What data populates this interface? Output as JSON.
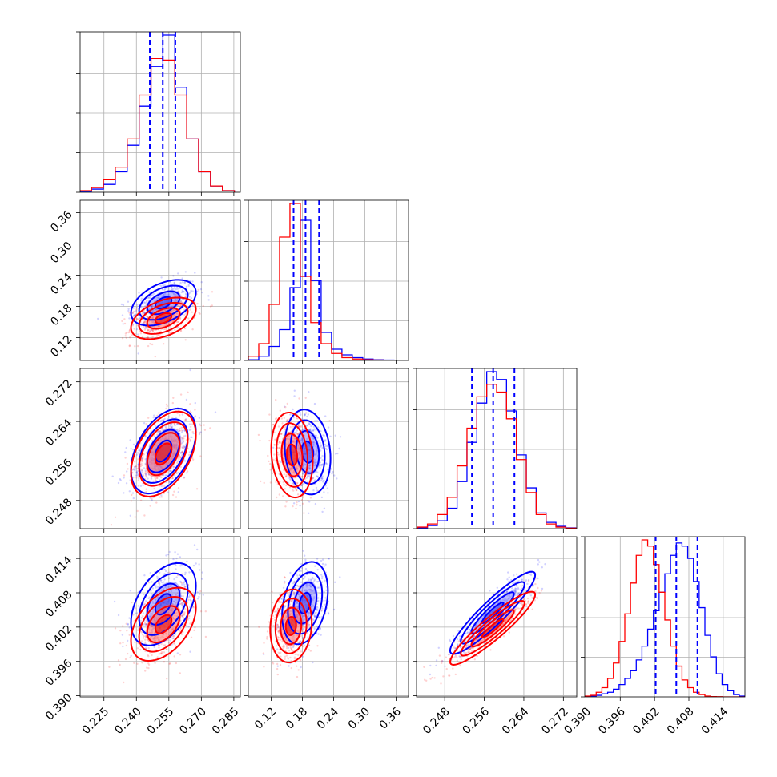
{
  "chart_data": {
    "type": "corner",
    "params": 4,
    "series": [
      {
        "color": "#0000ff"
      },
      {
        "color": "#ff0000"
      }
    ],
    "marginals": [
      {
        "range": [
          0.214,
          0.288
        ],
        "ticks": [
          0.225,
          0.24,
          0.255,
          0.27,
          0.285
        ],
        "tick_labels": [
          "0.225",
          "0.240",
          "0.255",
          "0.270",
          "0.285"
        ],
        "quantiles": [
          0.2462,
          0.2522,
          0.258
        ],
        "blue": {
          "x": [
            0.2165,
            0.222,
            0.2275,
            0.233,
            0.2385,
            0.244,
            0.2495,
            0.255,
            0.2605,
            0.266,
            0.2715,
            0.277,
            0.2825
          ],
          "y": [
            0.5,
            2,
            5,
            13,
            30,
            55,
            80,
            100,
            67,
            34,
            13,
            4,
            1
          ]
        },
        "red": {
          "x": [
            0.2165,
            0.222,
            0.2275,
            0.233,
            0.2385,
            0.244,
            0.2495,
            0.255,
            0.2605,
            0.266,
            0.2715,
            0.277,
            0.2825
          ],
          "y": [
            1,
            3,
            8,
            16,
            34,
            62,
            85,
            84,
            62,
            34,
            13,
            4,
            1
          ]
        }
      },
      {
        "range": [
          0.076,
          0.384
        ],
        "ticks": [
          0.12,
          0.18,
          0.24,
          0.3,
          0.36
        ],
        "tick_labels": [
          "0.12",
          "0.18",
          "0.24",
          "0.30",
          "0.36"
        ],
        "quantiles": [
          0.163,
          0.186,
          0.212
        ],
        "blue": {
          "x": [
            0.086,
            0.106,
            0.126,
            0.146,
            0.166,
            0.186,
            0.206,
            0.226,
            0.246,
            0.266,
            0.286,
            0.306,
            0.326,
            0.346,
            0.366
          ],
          "y": [
            0.5,
            3,
            10,
            22,
            52,
            100,
            57,
            20,
            8,
            4,
            2,
            1,
            0.5,
            0.3,
            0.1
          ]
        },
        "red": {
          "x": [
            0.086,
            0.106,
            0.126,
            0.146,
            0.166,
            0.186,
            0.206,
            0.226,
            0.246,
            0.266,
            0.286,
            0.306,
            0.326,
            0.346,
            0.366
          ],
          "y": [
            3,
            12,
            40,
            88,
            112,
            60,
            27,
            12,
            5,
            2,
            1,
            0.5,
            0.3,
            0.1,
            0.1
          ]
        }
      },
      {
        "range": [
          0.2423,
          0.2747
        ],
        "ticks": [
          0.248,
          0.256,
          0.264,
          0.272
        ],
        "tick_labels": [
          "0.248",
          "0.256",
          "0.264",
          "0.272"
        ],
        "quantiles": [
          0.2535,
          0.2578,
          0.2621
        ],
        "blue": {
          "x": [
            0.2435,
            0.2455,
            0.2475,
            0.2495,
            0.2515,
            0.2535,
            0.2555,
            0.2575,
            0.2595,
            0.2615,
            0.2635,
            0.2655,
            0.2675,
            0.2695,
            0.2715,
            0.2735
          ],
          "y": [
            0.5,
            2,
            5,
            13,
            30,
            55,
            80,
            100,
            95,
            75,
            47,
            26,
            10,
            4,
            1.5,
            0.5
          ]
        },
        "red": {
          "x": [
            0.2435,
            0.2455,
            0.2475,
            0.2495,
            0.2515,
            0.2535,
            0.2555,
            0.2575,
            0.2595,
            0.2615,
            0.2635,
            0.2655,
            0.2675,
            0.2695,
            0.2715,
            0.2735
          ],
          "y": [
            1,
            3,
            9,
            20,
            40,
            64,
            84,
            92,
            87,
            70,
            44,
            23,
            9,
            3,
            1,
            0.3
          ]
        }
      },
      {
        "range": [
          0.3898,
          0.4178
        ],
        "ticks": [
          0.39,
          0.396,
          0.402,
          0.408,
          0.414
        ],
        "tick_labels": [
          "0.390",
          "0.396",
          "0.402",
          "0.408",
          "0.414"
        ],
        "quantiles": [
          0.4022,
          0.4058,
          0.4095
        ],
        "blue": {
          "x": [
            0.3903,
            0.3913,
            0.3923,
            0.3933,
            0.3943,
            0.3953,
            0.3963,
            0.3973,
            0.3983,
            0.3993,
            0.4003,
            0.4013,
            0.4023,
            0.4033,
            0.4043,
            0.4053,
            0.4063,
            0.4073,
            0.4083,
            0.4093,
            0.4103,
            0.4113,
            0.4123,
            0.4133,
            0.4143,
            0.4153,
            0.4163,
            0.4173
          ],
          "y": [
            0.2,
            0.5,
            1,
            2,
            3,
            5,
            8,
            12,
            17,
            24,
            33,
            44,
            56,
            68,
            80,
            92,
            100,
            98,
            90,
            75,
            58,
            40,
            26,
            15,
            8,
            4,
            1.5,
            0.5
          ]
        },
        "red": {
          "x": [
            0.3903,
            0.3913,
            0.3923,
            0.3933,
            0.3943,
            0.3953,
            0.3963,
            0.3973,
            0.3983,
            0.3993,
            0.4003,
            0.4013,
            0.4023,
            0.4033,
            0.4043,
            0.4053,
            0.4063,
            0.4073,
            0.4083,
            0.4093,
            0.4103,
            0.4113,
            0.4123,
            0.4133,
            0.4143,
            0.4153,
            0.4163,
            0.4173
          ],
          "y": [
            0.5,
            1,
            3,
            6,
            12,
            22,
            36,
            54,
            74,
            92,
            102,
            98,
            86,
            68,
            50,
            33,
            20,
            11,
            6,
            3,
            1.5,
            0.5,
            0.2,
            0.1,
            0,
            0,
            0,
            0
          ]
        }
      }
    ],
    "pairs": [
      {
        "i": 1,
        "j": 0,
        "blue": {
          "mean": [
            0.2525,
            0.187
          ],
          "sd": [
            0.0075,
            0.022
          ],
          "rho": 0.45
        },
        "red": {
          "mean": [
            0.2525,
            0.157
          ],
          "sd": [
            0.0075,
            0.02
          ],
          "rho": 0.45
        }
      },
      {
        "i": 2,
        "j": 0,
        "blue": {
          "mean": [
            0.2525,
            0.258
          ],
          "sd": [
            0.0075,
            0.0043
          ],
          "rho": 0.45
        },
        "red": {
          "mean": [
            0.2525,
            0.2574
          ],
          "sd": [
            0.0075,
            0.0043
          ],
          "rho": 0.45
        }
      },
      {
        "i": 2,
        "j": 1,
        "blue": {
          "mean": [
            0.19,
            0.2578
          ],
          "sd": [
            0.022,
            0.0043
          ],
          "rho": -0.15
        },
        "red": {
          "mean": [
            0.16,
            0.2572
          ],
          "sd": [
            0.02,
            0.0043
          ],
          "rho": -0.15
        }
      },
      {
        "i": 3,
        "j": 0,
        "blue": {
          "mean": [
            0.2525,
            0.406
          ],
          "sd": [
            0.0075,
            0.0036
          ],
          "rho": 0.45
        },
        "red": {
          "mean": [
            0.2525,
            0.4025
          ],
          "sd": [
            0.0075,
            0.0032
          ],
          "rho": 0.45
        }
      },
      {
        "i": 3,
        "j": 1,
        "blue": {
          "mean": [
            0.185,
            0.4062
          ],
          "sd": [
            0.022,
            0.0036
          ],
          "rho": 0.3
        },
        "red": {
          "mean": [
            0.158,
            0.4022
          ],
          "sd": [
            0.02,
            0.0032
          ],
          "rho": 0.1
        }
      },
      {
        "i": 3,
        "j": 2,
        "blue": {
          "mean": [
            0.2577,
            0.4045
          ],
          "sd": [
            0.0043,
            0.0036
          ],
          "rho": 0.92
        },
        "red": {
          "mean": [
            0.2577,
            0.4018
          ],
          "sd": [
            0.0043,
            0.0032
          ],
          "rho": 0.92
        }
      }
    ]
  }
}
